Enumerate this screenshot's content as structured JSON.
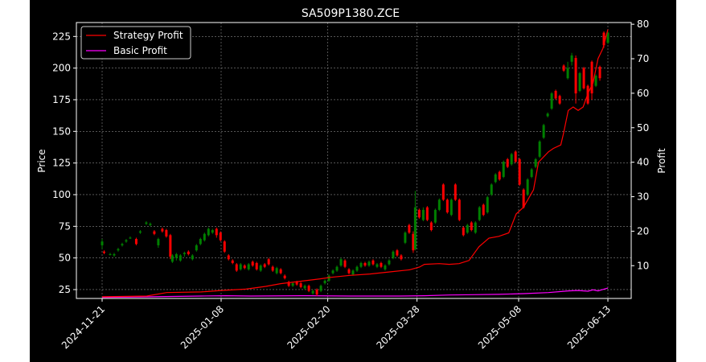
{
  "chart_data": {
    "type": "candlestick",
    "title": "SA509P1380.ZCE",
    "ylabel_left": "Price",
    "ylabel_right": "Profit",
    "ylim_left": [
      18,
      236
    ],
    "ylim_right": [
      0.5,
      80.5
    ],
    "yticks_left": [
      25,
      50,
      75,
      100,
      125,
      150,
      175,
      200,
      225
    ],
    "yticks_right": [
      10,
      20,
      30,
      40,
      50,
      60,
      70,
      80
    ],
    "xticks": [
      {
        "label": "2024-11-21",
        "day": 0
      },
      {
        "label": "2025-01-08",
        "day": 48
      },
      {
        "label": "2025-02-20",
        "day": 91
      },
      {
        "label": "2025-03-28",
        "day": 127
      },
      {
        "label": "2025-05-08",
        "day": 168
      },
      {
        "label": "2025-06-13",
        "day": 204
      }
    ],
    "grid": true,
    "legend_position": "top-left",
    "colors": {
      "up": "#008000",
      "down": "#ff0000",
      "strategy": "#ff0000",
      "basic": "#ff00ff",
      "grid": "#888888",
      "axis": "#ffffff"
    },
    "series": [
      {
        "name": "Strategy Profit",
        "axis": "right",
        "points": [
          [
            0,
            1
          ],
          [
            18,
            1.2
          ],
          [
            26,
            2.2
          ],
          [
            40,
            2.4
          ],
          [
            48,
            2.8
          ],
          [
            58,
            3.2
          ],
          [
            66,
            4
          ],
          [
            72,
            4.8
          ],
          [
            80,
            5.5
          ],
          [
            88,
            6.2
          ],
          [
            92,
            6.6
          ],
          [
            100,
            7.2
          ],
          [
            108,
            7.6
          ],
          [
            116,
            8.2
          ],
          [
            124,
            8.8
          ],
          [
            128,
            9.6
          ],
          [
            130,
            10.4
          ],
          [
            136,
            10.6
          ],
          [
            140,
            10.4
          ],
          [
            144,
            10.6
          ],
          [
            148,
            11.5
          ],
          [
            152,
            15.5
          ],
          [
            156,
            18
          ],
          [
            160,
            18.5
          ],
          [
            164,
            19.5
          ],
          [
            167,
            25
          ],
          [
            170,
            27
          ],
          [
            174,
            32
          ],
          [
            176,
            40
          ],
          [
            180,
            43
          ],
          [
            182,
            44
          ],
          [
            185,
            45
          ],
          [
            186,
            48
          ],
          [
            188,
            55
          ],
          [
            190,
            56
          ],
          [
            192,
            55
          ],
          [
            194,
            56
          ],
          [
            196,
            60
          ],
          [
            198,
            63
          ],
          [
            200,
            70
          ],
          [
            202,
            73
          ],
          [
            204,
            78.5
          ]
        ]
      },
      {
        "name": "Basic Profit",
        "axis": "right",
        "points": [
          [
            0,
            0.8
          ],
          [
            20,
            1
          ],
          [
            40,
            1.2
          ],
          [
            50,
            1.3
          ],
          [
            60,
            1.2
          ],
          [
            80,
            1.3
          ],
          [
            100,
            1.2
          ],
          [
            120,
            1.2
          ],
          [
            130,
            1.3
          ],
          [
            140,
            1.5
          ],
          [
            150,
            1.6
          ],
          [
            160,
            1.7
          ],
          [
            170,
            1.9
          ],
          [
            180,
            2.2
          ],
          [
            188,
            2.7
          ],
          [
            192,
            2.8
          ],
          [
            196,
            2.6
          ],
          [
            198,
            3.0
          ],
          [
            200,
            2.7
          ],
          [
            204,
            3.5
          ]
        ]
      }
    ],
    "candles": [
      [
        0,
        60,
        63,
        57,
        65
      ],
      [
        1,
        55,
        54,
        53,
        56
      ],
      [
        4,
        53,
        53,
        52,
        54
      ],
      [
        6,
        52,
        53,
        51,
        54
      ],
      [
        8,
        56,
        57,
        55,
        58
      ],
      [
        10,
        60,
        61,
        59,
        62
      ],
      [
        12,
        63,
        64,
        62,
        65
      ],
      [
        14,
        66,
        66,
        65,
        67
      ],
      [
        17,
        65,
        61,
        60,
        66
      ],
      [
        19,
        70,
        71,
        69,
        72
      ],
      [
        22,
        77,
        78,
        76,
        79
      ],
      [
        24,
        76,
        77,
        75,
        78
      ],
      [
        26,
        71,
        69,
        68,
        72
      ],
      [
        28,
        60,
        65,
        58,
        66
      ],
      [
        30,
        73,
        71,
        70,
        74
      ],
      [
        32,
        72,
        67,
        66,
        73
      ],
      [
        34,
        68,
        51,
        49,
        69
      ],
      [
        35,
        47,
        52,
        46,
        53
      ],
      [
        37,
        50,
        53,
        48,
        54
      ],
      [
        39,
        48,
        52,
        47,
        53
      ],
      [
        41,
        53,
        54,
        51,
        55
      ],
      [
        43,
        55,
        53,
        52,
        56
      ],
      [
        45,
        49,
        52,
        48,
        53
      ],
      [
        47,
        56,
        60,
        55,
        61
      ],
      [
        49,
        61,
        65,
        60,
        66
      ],
      [
        51,
        64,
        69,
        63,
        70
      ],
      [
        53,
        68,
        73,
        67,
        74
      ],
      [
        55,
        70,
        72,
        69,
        73
      ],
      [
        57,
        73,
        68,
        66,
        74
      ],
      [
        59,
        70,
        64,
        63,
        71
      ],
      [
        61,
        63,
        55,
        54,
        64
      ],
      [
        63,
        52,
        49,
        48,
        53
      ],
      [
        65,
        48,
        46,
        45,
        49
      ],
      [
        67,
        45,
        40,
        39,
        46
      ],
      [
        69,
        41,
        45,
        40,
        46
      ],
      [
        71,
        44,
        42,
        41,
        45
      ],
      [
        73,
        41,
        45,
        40,
        46
      ],
      [
        75,
        47,
        44,
        43,
        48
      ],
      [
        77,
        46,
        41,
        40,
        47
      ],
      [
        79,
        40,
        44,
        39,
        45
      ],
      [
        81,
        45,
        43,
        42,
        46
      ],
      [
        83,
        49,
        45,
        44,
        50
      ],
      [
        85,
        43,
        40,
        39,
        44
      ],
      [
        87,
        38,
        42,
        37,
        43
      ],
      [
        89,
        41,
        38,
        37,
        42
      ],
      [
        91,
        36,
        34,
        33,
        37
      ],
      [
        93,
        31,
        28,
        27,
        32
      ],
      [
        95,
        28,
        30,
        27,
        31
      ],
      [
        97,
        31,
        29,
        28,
        32
      ],
      [
        99,
        30,
        27,
        26,
        31
      ],
      [
        101,
        26,
        28,
        25,
        29
      ],
      [
        103,
        28,
        24,
        23,
        29
      ],
      [
        105,
        22,
        24,
        21,
        25
      ],
      [
        107,
        25,
        21,
        20,
        26
      ],
      [
        109,
        24,
        28,
        23,
        29
      ],
      [
        111,
        30,
        32,
        29,
        33
      ],
      [
        113,
        32,
        36,
        31,
        37
      ],
      [
        115,
        38,
        40,
        37,
        41
      ],
      [
        117,
        40,
        43,
        39,
        44
      ],
      [
        119,
        44,
        49,
        43,
        50
      ],
      [
        121,
        48,
        43,
        42,
        49
      ],
      [
        123,
        41,
        38,
        37,
        42
      ],
      [
        125,
        37,
        40,
        36,
        41
      ],
      [
        127,
        40,
        43,
        39,
        44
      ],
      [
        129,
        43,
        46,
        42,
        47
      ],
      [
        131,
        46,
        44,
        43,
        47
      ],
      [
        133,
        44,
        47,
        43,
        48
      ],
      [
        135,
        48,
        45,
        44,
        49
      ],
      [
        137,
        43,
        45,
        42,
        46
      ],
      [
        139,
        46,
        43,
        42,
        47
      ],
      [
        141,
        41,
        44,
        40,
        45
      ],
      [
        143,
        45,
        48,
        44,
        49
      ],
      [
        145,
        50,
        55,
        49,
        56
      ],
      [
        147,
        56,
        52,
        51,
        57
      ],
      [
        149,
        52,
        49,
        48,
        53
      ],
      [
        151,
        62,
        70,
        61,
        71
      ],
      [
        153,
        76,
        70,
        69,
        77
      ],
      [
        155,
        69,
        56,
        54,
        71
      ],
      [
        156,
        57,
        90,
        56,
        103
      ],
      [
        158,
        88,
        82,
        81,
        89
      ],
      [
        160,
        80,
        88,
        79,
        90
      ],
      [
        162,
        90,
        80,
        79,
        91
      ],
      [
        164,
        78,
        72,
        71,
        79
      ],
      [
        166,
        78,
        88,
        77,
        89
      ],
      [
        168,
        88,
        96,
        87,
        97
      ],
      [
        170,
        108,
        96,
        95,
        109
      ],
      [
        172,
        96,
        86,
        85,
        97
      ],
      [
        174,
        84,
        96,
        83,
        97
      ],
      [
        176,
        108,
        96,
        95,
        109
      ],
      [
        178,
        96,
        80,
        79,
        97
      ],
      [
        180,
        74,
        68,
        67,
        75
      ],
      [
        182,
        70,
        76,
        69,
        77
      ],
      [
        184,
        78,
        72,
        71,
        79
      ],
      [
        186,
        70,
        78,
        69,
        79
      ],
      [
        188,
        80,
        90,
        79,
        91
      ],
      [
        190,
        92,
        84,
        83,
        93
      ],
      [
        192,
        86,
        98,
        85,
        99
      ],
      [
        194,
        100,
        108,
        99,
        109
      ],
      [
        196,
        110,
        116,
        109,
        117
      ],
      [
        198,
        118,
        112,
        111,
        119
      ],
      [
        200,
        114,
        126,
        113,
        127
      ],
      [
        202,
        128,
        122,
        121,
        129
      ],
      [
        204,
        124,
        132,
        123,
        133
      ],
      [
        206,
        134,
        126,
        125,
        135
      ],
      [
        208,
        128,
        108,
        107,
        129
      ],
      [
        210,
        104,
        90,
        89,
        105
      ],
      [
        212,
        100,
        112,
        99,
        113
      ],
      [
        214,
        114,
        120,
        113,
        121
      ],
      [
        216,
        122,
        128,
        121,
        129
      ],
      [
        218,
        130,
        142,
        129,
        143
      ],
      [
        220,
        145,
        155,
        144,
        156
      ],
      [
        222,
        162,
        164,
        161,
        165
      ],
      [
        224,
        168,
        180,
        167,
        181
      ],
      [
        226,
        182,
        176,
        175,
        183
      ],
      [
        228,
        178,
        172,
        171,
        179
      ],
      [
        230,
        202,
        198,
        197,
        203
      ],
      [
        232,
        192,
        200,
        191,
        205
      ],
      [
        234,
        205,
        210,
        202,
        212
      ],
      [
        236,
        208,
        180,
        172,
        210
      ],
      [
        238,
        182,
        196,
        181,
        197
      ],
      [
        240,
        200,
        184,
        183,
        201
      ],
      [
        242,
        186,
        172,
        171,
        187
      ],
      [
        244,
        205,
        180,
        175,
        206
      ],
      [
        246,
        186,
        194,
        185,
        195
      ],
      [
        248,
        201,
        192,
        190,
        202
      ],
      [
        250,
        228,
        218,
        216,
        229
      ],
      [
        252,
        220,
        228,
        219,
        229
      ]
    ]
  }
}
